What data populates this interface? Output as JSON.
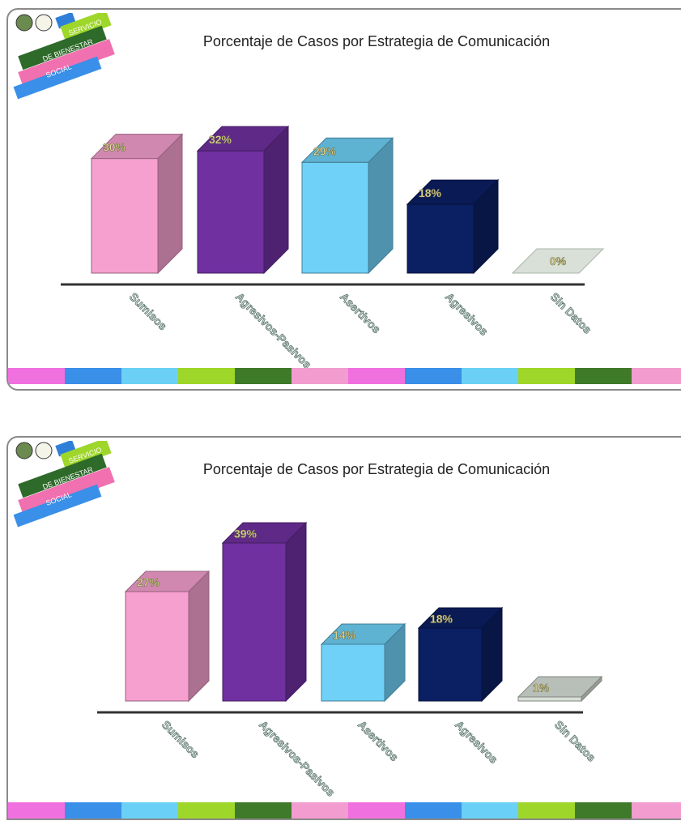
{
  "slides": [
    {
      "logo": {
        "line1": "SERVICIO",
        "line2": "DE BIENESTAR",
        "line3": "SOCIAL"
      },
      "stripe_colors": [
        "#f070e0",
        "#3a8fe8",
        "#6ad0f5",
        "#9ed62a",
        "#3f7a2a",
        "#f29cd0",
        "#f070e0",
        "#3a8fe8",
        "#6ad0f5",
        "#9ed62a",
        "#3f7a2a",
        "#f29cd0"
      ]
    },
    {
      "logo": {
        "line1": "SERVICIO",
        "line2": "DE BIENESTAR",
        "line3": "SOCIAL"
      },
      "stripe_colors": [
        "#f070e0",
        "#3a8fe8",
        "#6ad0f5",
        "#9ed62a",
        "#3f7a2a",
        "#f29cd0",
        "#f070e0",
        "#3a8fe8",
        "#6ad0f5",
        "#9ed62a",
        "#3f7a2a",
        "#f29cd0"
      ]
    }
  ],
  "chart_data": [
    {
      "type": "bar",
      "title": "Porcentaje de Casos por Estrategia de Comunicación",
      "categories": [
        "Sumisos",
        "Agresivos-Pasivos",
        "Asertivos",
        "Agresivos",
        "Sin Datos"
      ],
      "values": [
        30,
        32,
        29,
        18,
        0
      ],
      "data_labels": [
        "30%",
        "32%",
        "29%",
        "18%",
        "0%"
      ],
      "colors": [
        "#f6a0cf",
        "#7030a0",
        "#6fd1f7",
        "#0b1f63",
        "#d8e0d8"
      ],
      "ylim": [
        0,
        35
      ],
      "grid": false,
      "legend": "none"
    },
    {
      "type": "bar",
      "title": "Porcentaje de Casos por Estrategia de Comunicación",
      "categories": [
        "Sumisos",
        "Agresivos-Pasivos",
        "Asertivos",
        "Agresivos",
        "Sin Datos"
      ],
      "values": [
        27,
        39,
        14,
        18,
        1
      ],
      "data_labels": [
        "27%",
        "39%",
        "14%",
        "18%",
        "1%"
      ],
      "colors": [
        "#f6a0cf",
        "#7030a0",
        "#6fd1f7",
        "#0b1f63",
        "#d8e0d8"
      ],
      "ylim": [
        0,
        42
      ],
      "grid": false,
      "legend": "none"
    }
  ]
}
